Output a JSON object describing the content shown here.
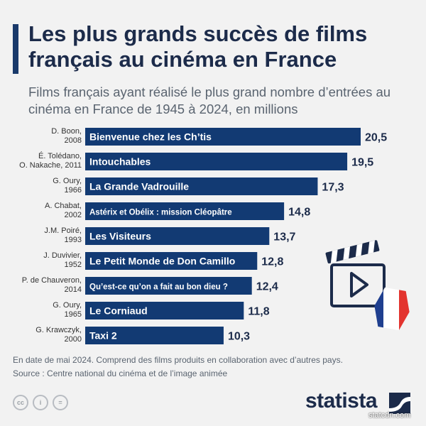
{
  "header": {
    "title": "Les plus grands succès de films français au cinéma en France",
    "subtitle": "Films français ayant réalisé le plus grand nombre d’entrées au cinéma en France de 1945 à 2024, en millions"
  },
  "chart_data": {
    "type": "bar",
    "orientation": "horizontal",
    "title": "Les plus grands succès de films français au cinéma en France",
    "subtitle": "Films français ayant réalisé le plus grand nombre d’entrées au cinéma en France de 1945 à 2024, en millions",
    "categories": [
      "Bienvenue chez les Ch’tis",
      "Intouchables",
      "La Grande Vadrouille",
      "Astérix et Obélix : mission Cléopâtre",
      "Les Visiteurs",
      "Le Petit Monde de Don Camillo",
      "Qu’est-ce qu’on a fait au bon dieu ?",
      "Le Corniaud",
      "Taxi 2"
    ],
    "directors": [
      [
        "D. Boon,",
        "2008"
      ],
      [
        "É. Tolédano,",
        "O. Nakache, 2011"
      ],
      [
        "G. Oury,",
        "1966"
      ],
      [
        "A. Chabat,",
        "2002"
      ],
      [
        "J.M. Poiré,",
        "1993"
      ],
      [
        "J. Duvivier,",
        "1952"
      ],
      [
        "P. de Chauveron,",
        "2014"
      ],
      [
        "G. Oury,",
        "1965"
      ],
      [
        "G. Krawczyk,",
        "2000"
      ]
    ],
    "values": [
      20.5,
      19.5,
      17.3,
      14.8,
      13.7,
      12.8,
      12.4,
      11.8,
      10.3
    ],
    "value_labels": [
      "20,5",
      "19,5",
      "17,3",
      "14,8",
      "13,7",
      "12,8",
      "12,4",
      "11,8",
      "10,3"
    ],
    "xlabel": "",
    "ylabel": "",
    "xlim": [
      0,
      20.5
    ],
    "grid": false,
    "bar_color": "#123a73"
  },
  "footer": {
    "note": "En date de mai 2024. Comprend des films produits en collaboration avec d’autres pays.",
    "source": "Source : Centre national du cinéma et de l’image animée",
    "brand": "statista",
    "watermark": "statcdn.com",
    "cc_icons": [
      "cc",
      "i",
      "="
    ]
  },
  "colors": {
    "background": "#f2f2f2",
    "accent": "#1a3a6b",
    "flag_blue": "#1f3f8f",
    "flag_red": "#e3342f"
  }
}
